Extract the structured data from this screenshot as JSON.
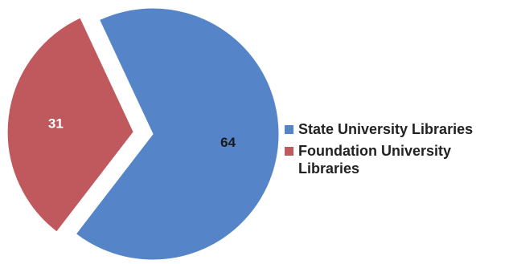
{
  "chart_data": {
    "type": "pie",
    "title": "",
    "slices": [
      {
        "label": "State University Libraries",
        "value": 64,
        "value_label": "64",
        "color": "#5585c8",
        "exploded": false
      },
      {
        "label": "Foundation University Libraries",
        "value": 31,
        "value_label": "31",
        "color": "#bf595e",
        "exploded": true
      }
    ],
    "legend_position": "right",
    "data_label_colors": [
      "#1a1a1a",
      "#ffffff"
    ]
  }
}
